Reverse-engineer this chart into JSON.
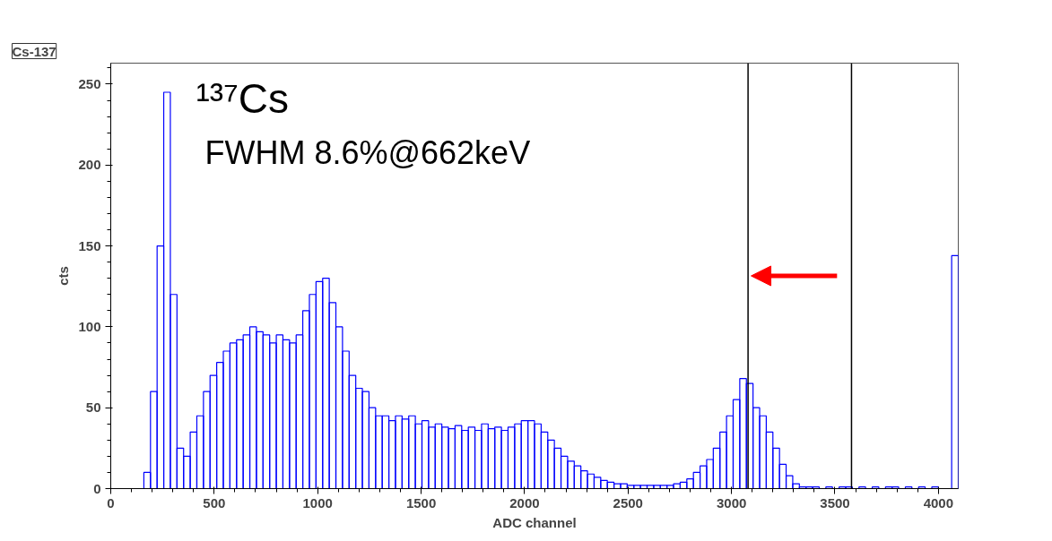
{
  "chart_data": {
    "type": "histogram",
    "title": "Cs-137",
    "xlabel": "ADC channel",
    "ylabel": "cts",
    "annotations": [
      "¹³⁷Cs",
      "FWHM  8.6%@662keV"
    ],
    "bins": [
      0,
      32,
      64,
      96,
      128,
      160,
      192,
      224,
      256,
      288,
      320,
      352,
      384,
      416,
      448,
      480,
      512,
      544,
      576,
      608,
      640,
      672,
      704,
      736,
      768,
      800,
      832,
      864,
      896,
      928,
      960,
      992,
      1024,
      1056,
      1088,
      1120,
      1152,
      1184,
      1216,
      1248,
      1280,
      1312,
      1344,
      1376,
      1408,
      1440,
      1472,
      1504,
      1536,
      1568,
      1600,
      1632,
      1664,
      1696,
      1728,
      1760,
      1792,
      1824,
      1856,
      1888,
      1920,
      1952,
      1984,
      2016,
      2048,
      2080,
      2112,
      2144,
      2176,
      2208,
      2240,
      2272,
      2304,
      2336,
      2368,
      2400,
      2432,
      2464,
      2496,
      2528,
      2560,
      2592,
      2624,
      2656,
      2688,
      2720,
      2752,
      2784,
      2816,
      2848,
      2880,
      2912,
      2944,
      2976,
      3008,
      3040,
      3072,
      3104,
      3136,
      3168,
      3200,
      3232,
      3264,
      3296,
      3328,
      3360,
      3392,
      3424,
      3456,
      3488,
      3520,
      3552,
      3584,
      3616,
      3648,
      3680,
      3712,
      3744,
      3776,
      3808,
      3840,
      3872,
      3904,
      3936,
      3968,
      4000,
      4032,
      4064,
      4096
    ],
    "values": [
      0,
      0,
      0,
      0,
      0,
      10,
      60,
      150,
      245,
      120,
      25,
      20,
      35,
      45,
      60,
      70,
      78,
      85,
      90,
      92,
      95,
      100,
      97,
      95,
      90,
      95,
      92,
      90,
      95,
      110,
      120,
      128,
      130,
      115,
      100,
      85,
      70,
      62,
      60,
      50,
      45,
      45,
      42,
      45,
      43,
      45,
      40,
      42,
      38,
      40,
      38,
      37,
      39,
      36,
      38,
      36,
      40,
      37,
      38,
      36,
      38,
      40,
      42,
      42,
      40,
      35,
      30,
      25,
      20,
      17,
      14,
      11,
      9,
      7,
      5,
      4,
      3,
      3,
      2,
      2,
      2,
      2,
      2,
      2,
      2,
      3,
      4,
      6,
      10,
      14,
      18,
      25,
      35,
      45,
      55,
      68,
      65,
      50,
      45,
      35,
      25,
      15,
      8,
      3,
      1,
      1,
      1,
      0,
      1,
      0,
      1,
      1,
      0,
      1,
      0,
      1,
      0,
      1,
      1,
      0,
      1,
      0,
      1,
      0,
      1,
      0,
      0,
      144
    ],
    "color": "#0000ff",
    "xlim": [
      0,
      4096
    ],
    "ylim": [
      0,
      263
    ],
    "xticks": [
      0,
      500,
      1000,
      1500,
      2000,
      2500,
      3000,
      3500,
      4000
    ],
    "yticks": [
      0,
      50,
      100,
      150,
      200,
      250
    ],
    "ref_lines": [
      {
        "axis": "x",
        "value": 3080,
        "color": "#000000"
      },
      {
        "axis": "x",
        "value": 3580,
        "color": "#000000"
      }
    ],
    "grid": false
  }
}
